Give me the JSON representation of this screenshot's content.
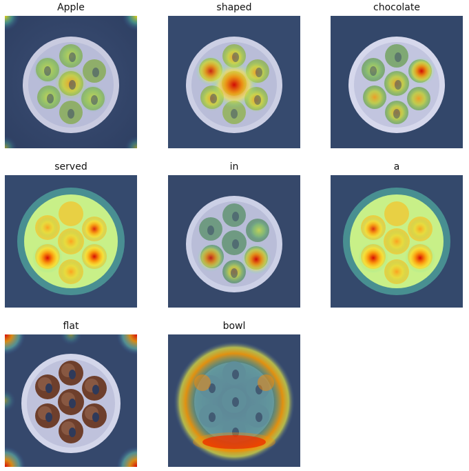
{
  "figure": {
    "panels": [
      {
        "label": "Apple",
        "colormap": "jet-overlay"
      },
      {
        "label": "shaped",
        "colormap": "jet-overlay"
      },
      {
        "label": "chocolate",
        "colormap": "jet-overlay"
      },
      {
        "label": "served",
        "colormap": "jet-overlay"
      },
      {
        "label": "in",
        "colormap": "jet-overlay"
      },
      {
        "label": "a",
        "colormap": "jet-overlay"
      },
      {
        "label": "flat",
        "colormap": "jet-overlay"
      },
      {
        "label": "bowl",
        "colormap": "jet-overlay"
      }
    ]
  }
}
